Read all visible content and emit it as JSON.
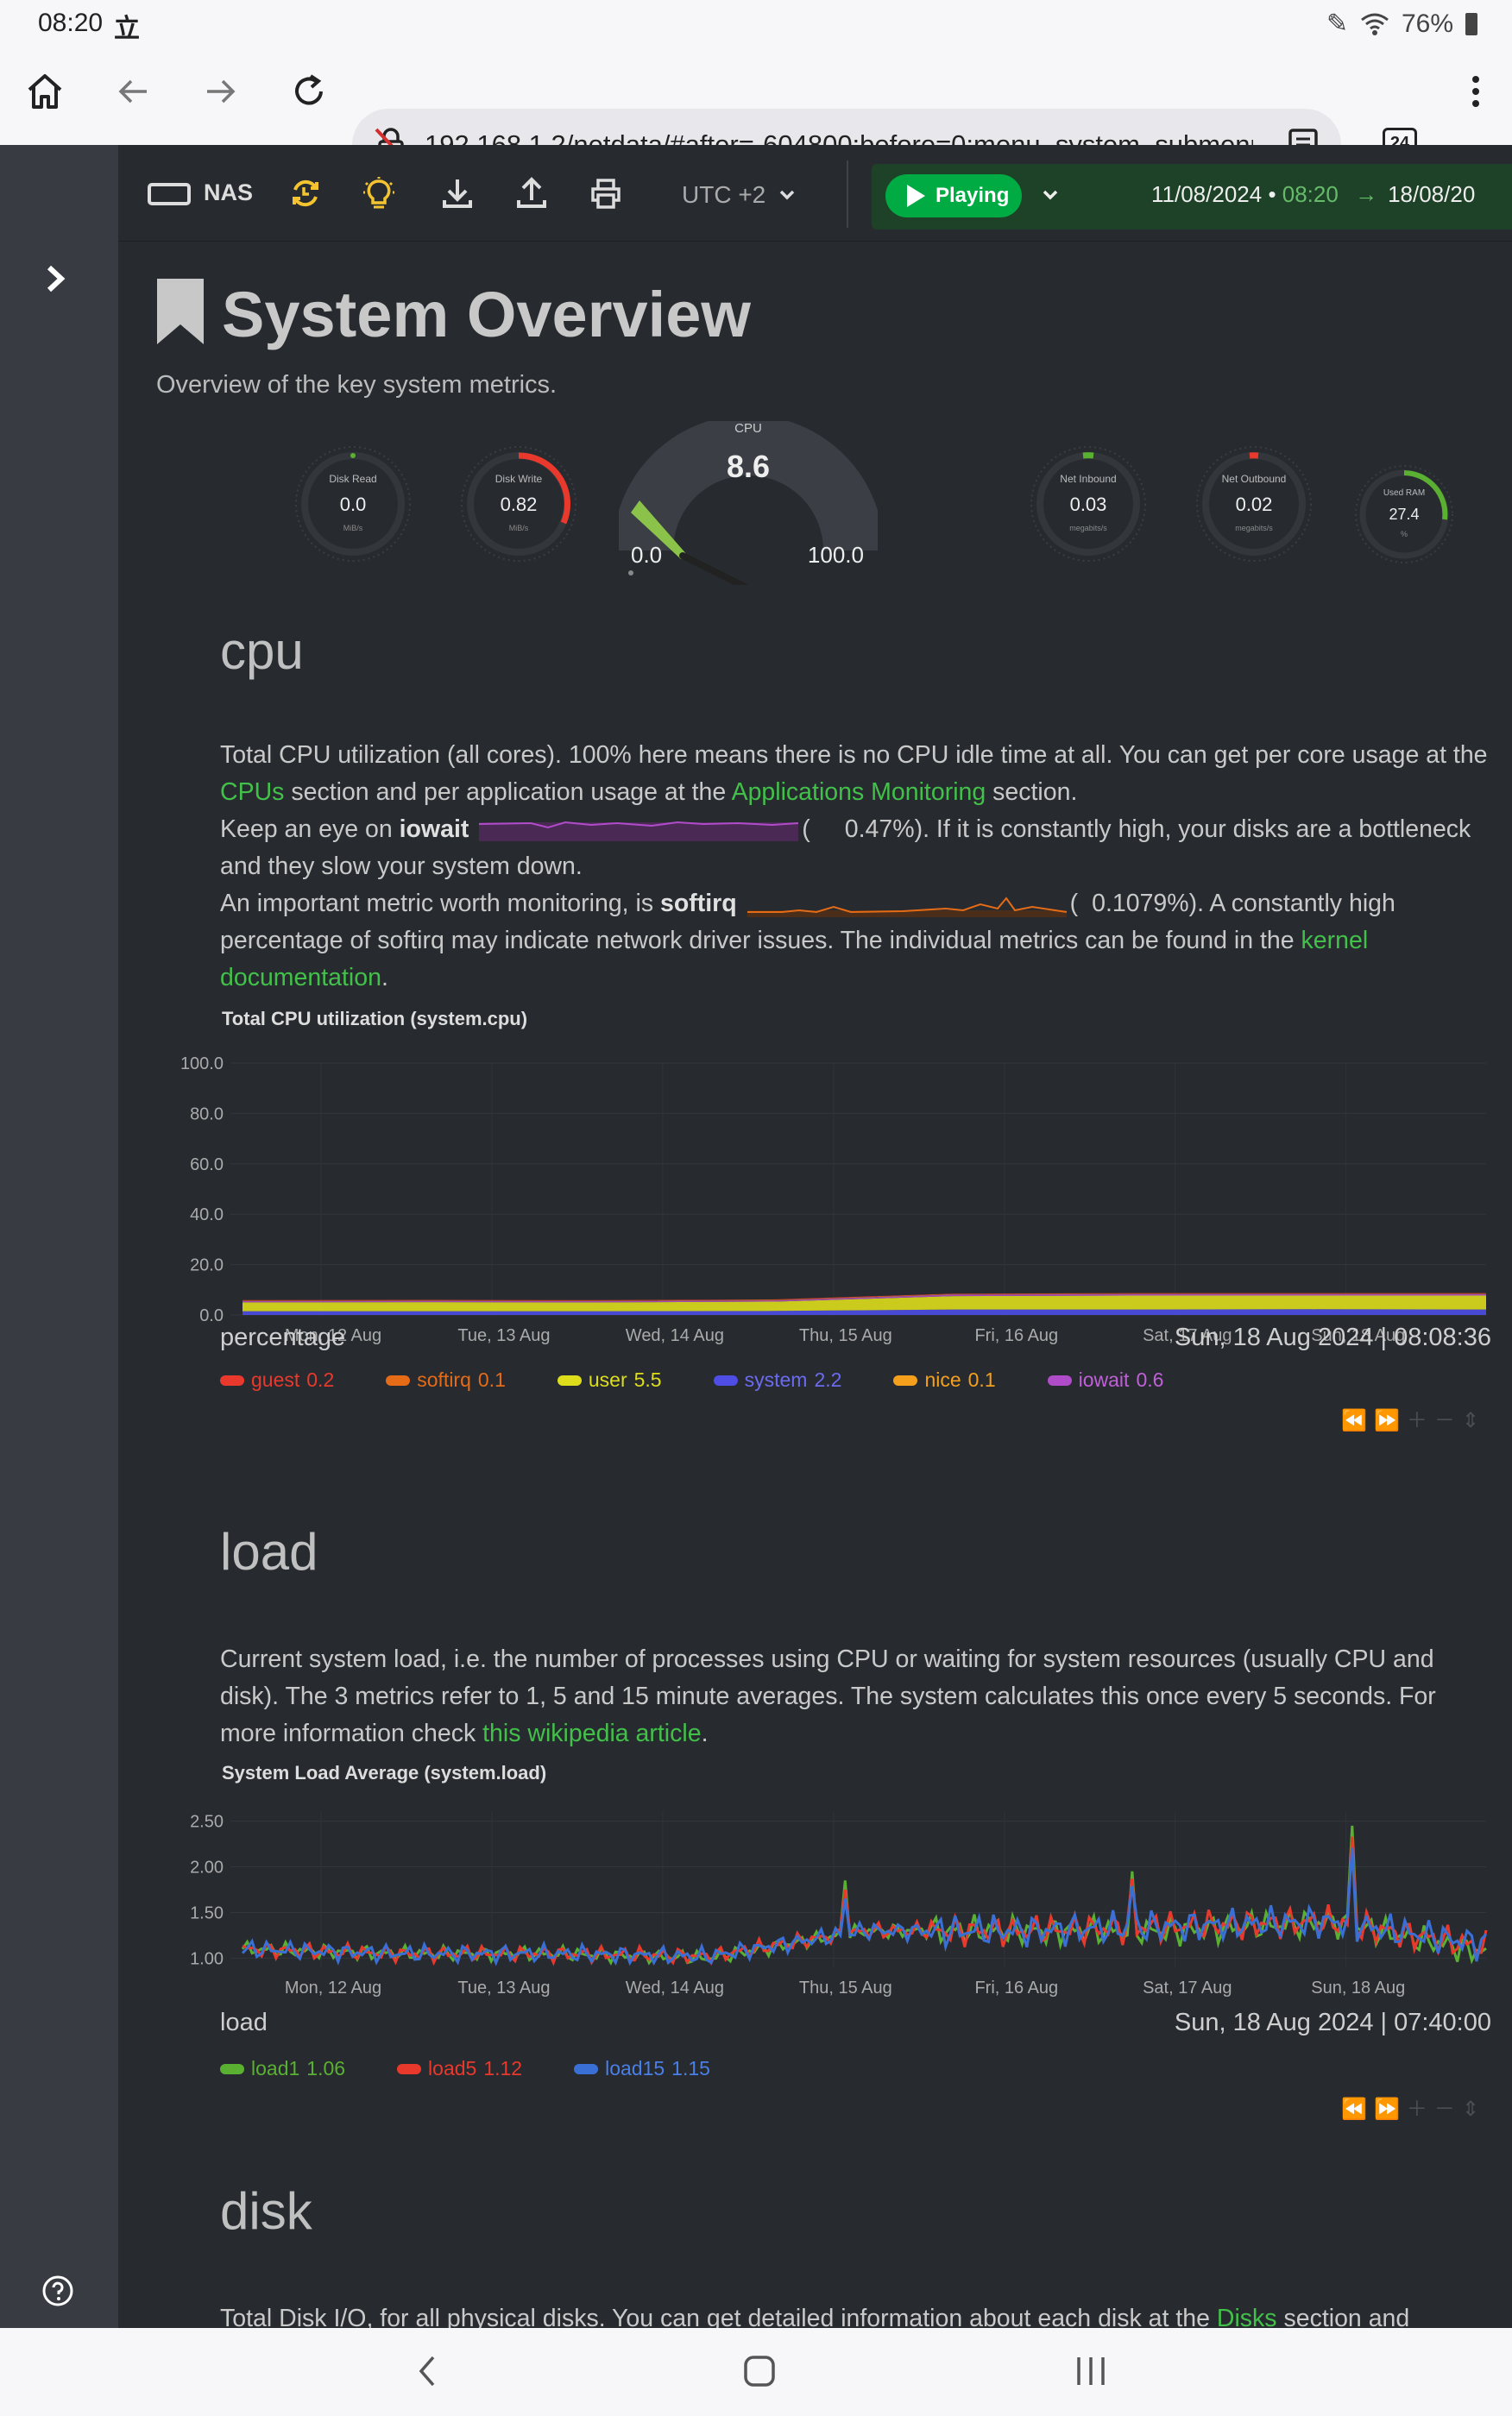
{
  "status_bar": {
    "time": "08:20",
    "notif": "立",
    "battery": "76%"
  },
  "browser": {
    "url": "192.168.1.2/netdata/#after=-604800;before=0;menu_system_submenu",
    "tab_count": "24"
  },
  "toolbar": {
    "host": "NAS",
    "timezone": "UTC +2",
    "play_label": "Playing",
    "range_start_date": "11/08/2024",
    "range_start_time": "08:20",
    "range_end": "18/08/20"
  },
  "page": {
    "title": "System Overview",
    "subtitle": "Overview of the key system metrics."
  },
  "gauges": [
    {
      "label": "Disk Read",
      "value": "0.0",
      "unit": "MiB/s"
    },
    {
      "label": "Disk Write",
      "value": "0.82",
      "unit": "MiB/s"
    },
    {
      "label": "CPU",
      "value": "8.6",
      "min": "0.0",
      "max": "100.0"
    },
    {
      "label": "Net Inbound",
      "value": "0.03",
      "unit": "megabits/s"
    },
    {
      "label": "Net Outbound",
      "value": "0.02",
      "unit": "megabits/s"
    },
    {
      "label": "Used RAM",
      "value": "27.4",
      "unit": "%"
    }
  ],
  "cpu": {
    "heading": "cpu",
    "p1a": "Total CPU utilization (all cores). 100% here means there is no CPU idle time at all. You can get per core usage at the ",
    "p1_link1": "CPUs",
    "p1b": " section and per application usage at the ",
    "p1_link2": "Applications Monitoring",
    "p1c": " section.",
    "p2a": "Keep an eye on ",
    "p2_bold": "iowait",
    "p2_open": "(",
    "p2b": "0.47%). If it is constantly high, your disks are a bottleneck and they slow your system down.",
    "p3a": "An important metric worth monitoring, is ",
    "p3_bold": "softirq",
    "p3_open": "(",
    "p3b": "0.1079%). A constantly high percentage of softirq may indicate network driver issues. The individual metrics can be found in the ",
    "p3_link": "kernel documentation",
    "p3c": ".",
    "chart_title": "Total CPU utilization (system.cpu)",
    "units": "percentage",
    "timestamp": "Sun, 18 Aug 2024 | 08:08:36",
    "legend": [
      {
        "name": "guest",
        "value": "0.2",
        "color": "#e8392c"
      },
      {
        "name": "softirq",
        "value": "0.1",
        "color": "#e56b16"
      },
      {
        "name": "user",
        "value": "5.5",
        "color": "#dddd1c"
      },
      {
        "name": "system",
        "value": "2.2",
        "color": "#4e4ee6"
      },
      {
        "name": "nice",
        "value": "0.1",
        "color": "#f4a01c"
      },
      {
        "name": "iowait",
        "value": "0.6",
        "color": "#b04cc9"
      }
    ]
  },
  "load": {
    "heading": "load",
    "p1a": "Current system load, i.e. the number of processes using CPU or waiting for system resources (usually CPU and disk). The 3 metrics refer to 1, 5 and 15 minute averages. The system calculates this once every 5 seconds. For more information check ",
    "p1_link": "this wikipedia article",
    "p1b": ".",
    "chart_title": "System Load Average (system.load)",
    "units": "load",
    "timestamp": "Sun, 18 Aug 2024 | 07:40:00",
    "legend": [
      {
        "name": "load1",
        "value": "1.06",
        "color": "#5ab031"
      },
      {
        "name": "load5",
        "value": "1.12",
        "color": "#e8392c"
      },
      {
        "name": "load15",
        "value": "1.15",
        "color": "#3a6fd6"
      }
    ]
  },
  "disk": {
    "heading": "disk",
    "p1a": "Total Disk I/O, for all physical disks. You can get detailed information about each disk at the ",
    "p1_link": "Disks",
    "p1b": " section and"
  },
  "chart_data": [
    {
      "type": "area",
      "title": "Total CPU utilization (system.cpu)",
      "ylabel": "percentage",
      "ylim": [
        0,
        100
      ],
      "yticks": [
        "100.0",
        "80.0",
        "60.0",
        "40.0",
        "20.0",
        "0.0"
      ],
      "xticks": [
        "Mon, 12 Aug",
        "Tue, 13 Aug",
        "Wed, 14 Aug",
        "Thu, 15 Aug",
        "Fri, 16 Aug",
        "Sat, 17 Aug",
        "Sun, 18 Aug"
      ],
      "series": [
        {
          "name": "guest",
          "values": [
            0.2,
            0.2,
            0.2,
            0.2,
            0.2,
            0.2,
            0.2,
            0.2
          ]
        },
        {
          "name": "softirq",
          "values": [
            0.1,
            0.1,
            0.1,
            0.1,
            0.1,
            0.1,
            0.1,
            0.1
          ]
        },
        {
          "name": "user",
          "values": [
            3.5,
            3.6,
            3.5,
            3.7,
            5.3,
            5.5,
            5.4,
            5.5
          ]
        },
        {
          "name": "system",
          "values": [
            1.5,
            1.5,
            1.5,
            1.6,
            2.2,
            2.2,
            2.3,
            2.2
          ]
        },
        {
          "name": "nice",
          "values": [
            0.1,
            0.1,
            0.1,
            0.1,
            0.1,
            0.1,
            0.1,
            0.1
          ]
        },
        {
          "name": "iowait",
          "values": [
            0.5,
            0.5,
            0.5,
            0.5,
            0.6,
            0.6,
            0.6,
            0.6
          ]
        }
      ]
    },
    {
      "type": "line",
      "title": "System Load Average (system.load)",
      "ylabel": "load",
      "ylim": [
        0.9,
        2.6
      ],
      "yticks": [
        "2.50",
        "2.00",
        "1.50",
        "1.00"
      ],
      "xticks": [
        "Mon, 12 Aug",
        "Tue, 13 Aug",
        "Wed, 14 Aug",
        "Thu, 15 Aug",
        "Fri, 16 Aug",
        "Sat, 17 Aug",
        "Sun, 18 Aug"
      ],
      "series": [
        {
          "name": "load1",
          "values": [
            1.1,
            1.05,
            1.05,
            1.0,
            1.3,
            1.3,
            1.3,
            1.4,
            1.06
          ]
        },
        {
          "name": "load5",
          "values": [
            1.1,
            1.05,
            1.05,
            1.02,
            1.3,
            1.3,
            1.35,
            1.4,
            1.12
          ]
        },
        {
          "name": "load15",
          "values": [
            1.1,
            1.05,
            1.05,
            1.02,
            1.3,
            1.3,
            1.35,
            1.4,
            1.15
          ]
        }
      ]
    }
  ]
}
